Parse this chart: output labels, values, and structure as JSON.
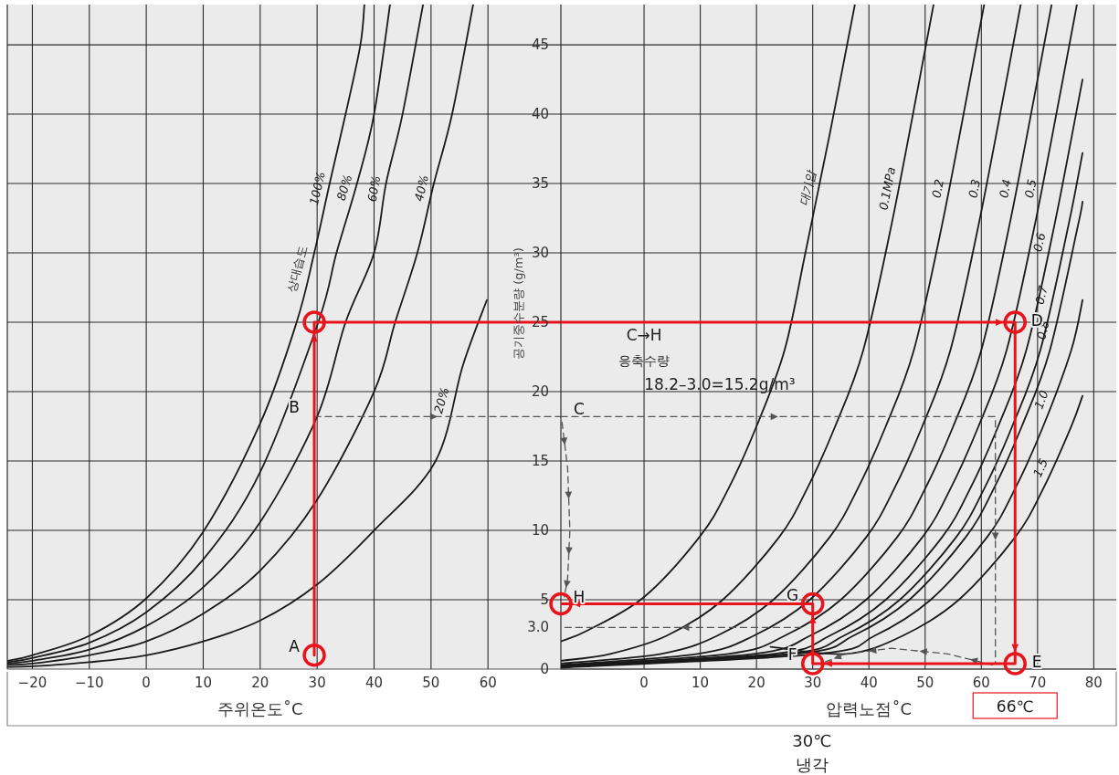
{
  "chart_data": [
    {
      "type": "line",
      "xlabel": "주위온도˚C",
      "xlim": [
        -24.4,
        72.8
      ],
      "xticks": [
        {
          "value": -20,
          "label": "−20"
        },
        {
          "value": -10,
          "label": "−10"
        },
        0,
        10,
        20,
        30,
        40,
        50,
        60
      ],
      "ylim": [
        0,
        47.9
      ],
      "yticks": [
        5,
        10,
        15,
        20,
        25,
        30,
        35,
        40,
        45
      ],
      "tick_labels": "x",
      "grid": true,
      "series": [
        {
          "name": "100%",
          "color": "#1a1a1a",
          "x": [
            -24.4,
            -20,
            -10,
            0,
            10,
            20,
            26.4,
            29.5,
            32.2,
            35,
            37.6,
            38.3
          ],
          "values": [
            0.6,
            1.0,
            2.4,
            5.1,
            9.9,
            17.7,
            25,
            30,
            35,
            40,
            45,
            47.9
          ]
        },
        {
          "name": "80%",
          "color": "#1a1a1a",
          "x": [
            -24.4,
            -20,
            -10,
            0,
            10,
            20,
            30.2,
            33.4,
            37,
            40,
            42.8
          ],
          "values": [
            0.5,
            0.8,
            1.9,
            4.1,
            7.9,
            14.2,
            25,
            30,
            35,
            40,
            47.9
          ]
        },
        {
          "name": "60%",
          "color": "#1a1a1a",
          "x": [
            -24.4,
            -20,
            -10,
            0,
            10,
            20,
            30,
            35,
            40,
            42.1,
            45,
            48.6
          ],
          "values": [
            0.4,
            0.6,
            1.4,
            3.1,
            5.9,
            10.6,
            18.2,
            25,
            30,
            35,
            40,
            47.9
          ]
        },
        {
          "name": "40%",
          "color": "#1a1a1a",
          "x": [
            -24.4,
            -20,
            -10,
            0,
            10,
            20,
            30,
            40,
            43.7,
            47.6,
            50.5,
            53.7,
            57.4
          ],
          "values": [
            0.3,
            0.4,
            1.0,
            2,
            4,
            7.1,
            12.2,
            20,
            25,
            30,
            35,
            40,
            47.9
          ]
        },
        {
          "name": "20%",
          "color": "#1a1a1a",
          "x": [
            -24.4,
            -20,
            -10,
            0,
            10,
            20,
            30,
            40,
            50.8,
            55.6,
            59.8
          ],
          "values": [
            0.15,
            0.2,
            0.5,
            1,
            2,
            3.5,
            6.1,
            10,
            15,
            21.9,
            26.6
          ]
        },
        {
          "type": "line",
          "color": "#555555",
          "line_style": "dashed",
          "x": [
            29.5,
            72.8
          ],
          "values": [
            18.2,
            18.2
          ]
        },
        {
          "type": "line",
          "color": "#e8141c",
          "x": [
            29.5,
            29.5,
            72.8
          ],
          "values": [
            1,
            25,
            25
          ]
        },
        {
          "type": "scatter",
          "color": "#e8141c",
          "marker": "circle",
          "x": [
            29.5,
            29.5
          ],
          "values": [
            1,
            25
          ]
        }
      ],
      "legend_title": "상대습도",
      "annotations": [
        {
          "text": "A",
          "x": 29.5,
          "y": 1
        },
        {
          "text": "B",
          "x": 29.5,
          "y": 18.2
        }
      ]
    },
    {
      "type": "line",
      "xlabel": "압력노점˚C",
      "ylabel": "공기중수분량 (g/m³)",
      "xlim": [
        -14.8,
        84
      ],
      "xticks": [
        0,
        10,
        20,
        30,
        40,
        50,
        60,
        70,
        80
      ],
      "ylim": [
        0,
        47.9
      ],
      "yticks": [
        0,
        {
          "value": 3,
          "label": "3.0"
        },
        5,
        10,
        15,
        20,
        25,
        30,
        35,
        40,
        45
      ],
      "grid": true,
      "series": [
        {
          "name": "대기압",
          "color": "#1a1a1a",
          "x": [
            -14.8,
            -10,
            0,
            10,
            15,
            20,
            25,
            28.7,
            33,
            37.5
          ],
          "values": [
            2.0,
            2.8,
            5.2,
            9.6,
            13,
            17.5,
            23,
            30,
            38.5,
            47.9
          ]
        },
        {
          "name": "0.1MPa",
          "color": "#1a1a1a",
          "x": [
            -14.8,
            -6,
            4,
            14,
            24,
            29,
            34,
            39,
            44,
            49,
            51.5
          ],
          "values": [
            0.6,
            1.1,
            2.4,
            5,
            9.5,
            13,
            17.5,
            23,
            32,
            42.5,
            47.9
          ]
        },
        {
          "name": "0.2",
          "color": "#1a1a1a",
          "x": [
            -14.8,
            3,
            13,
            23,
            33,
            38,
            43,
            48,
            53,
            58,
            60.5
          ],
          "values": [
            0.4,
            1.1,
            2.4,
            5,
            9.5,
            13,
            17.5,
            23,
            32,
            42.5,
            47.9
          ]
        },
        {
          "name": "0.3",
          "color": "#1a1a1a",
          "x": [
            -14.8,
            9.5,
            19.5,
            29.5,
            39.5,
            44.5,
            49.5,
            54.5,
            59.5,
            64.5,
            67
          ],
          "values": [
            0.3,
            1.1,
            2.4,
            5,
            9.5,
            13,
            17.5,
            23,
            32,
            42.5,
            47.9
          ]
        },
        {
          "name": "0.4",
          "color": "#1a1a1a",
          "x": [
            -14.8,
            15,
            25,
            35,
            45,
            50,
            55,
            60,
            65,
            70,
            72.5
          ],
          "values": [
            0.25,
            1.1,
            2.4,
            5,
            9.5,
            13,
            17.5,
            23,
            32,
            42.5,
            47.9
          ]
        },
        {
          "name": "0.5",
          "color": "#1a1a1a",
          "x": [
            -14.8,
            19.5,
            29.5,
            39.5,
            49.5,
            54.5,
            59.5,
            64.5,
            69.5,
            74.5,
            77
          ],
          "values": [
            0.2,
            1.1,
            2.4,
            5,
            9.5,
            13,
            17.5,
            23,
            32,
            42.5,
            47.9
          ]
        },
        {
          "name": "0.6",
          "color": "#1a1a1a",
          "x": [
            -14.8,
            23,
            33,
            43,
            53,
            58,
            63,
            68,
            73,
            78
          ],
          "values": [
            0.2,
            1.1,
            2.4,
            5,
            9.5,
            13,
            17.5,
            23,
            32,
            42.5
          ]
        },
        {
          "name": "0.7",
          "color": "#1a1a1a",
          "x": [
            -14.8,
            25.5,
            35.5,
            45.5,
            55.5,
            60.5,
            65.5,
            70.5,
            75.5,
            78
          ],
          "values": [
            0.15,
            1.1,
            2.4,
            5,
            9.5,
            13,
            17.5,
            23,
            32,
            37.2
          ]
        },
        {
          "name": "0.8",
          "color": "#1a1a1a",
          "x": [
            -14.8,
            27.2,
            37.2,
            47.2,
            57.2,
            62.2,
            67.2,
            72.2,
            77.2,
            78
          ],
          "values": [
            0.15,
            1.1,
            2.4,
            5,
            9.5,
            13,
            17.5,
            23,
            32,
            33.7
          ]
        },
        {
          "name": "1.0",
          "color": "#1a1a1a",
          "x": [
            -14.8,
            31,
            41,
            51,
            61,
            66,
            71,
            76,
            78
          ],
          "values": [
            0.1,
            1.1,
            2.4,
            5,
            9.5,
            13,
            17.5,
            23,
            26.6
          ]
        },
        {
          "name": "1.5",
          "color": "#1a1a1a",
          "x": [
            22.5,
            36,
            46,
            56,
            66,
            71,
            76,
            78
          ],
          "values": [
            1.6,
            1.1,
            2.4,
            5,
            9.5,
            13,
            17.5,
            19.7
          ]
        },
        {
          "type": "line",
          "color": "#555555",
          "line_style": "dashed",
          "x": [
            -14.8,
            62.5,
            62.5
          ],
          "values": [
            18.2,
            18.2,
            0.4
          ]
        },
        {
          "type": "line",
          "color": "#555555",
          "line_style": "dashed",
          "x": [
            -14.6,
            -13.6,
            -13.2,
            -13.6,
            -14.2
          ],
          "values": [
            17.8,
            14.5,
            10,
            6.5,
            5.2
          ]
        },
        {
          "type": "line",
          "color": "#555555",
          "line_style": "dashed",
          "x": [
            28,
            -14.6
          ],
          "values": [
            3,
            3
          ]
        },
        {
          "type": "line",
          "color": "#555555",
          "line_style": "dashed",
          "x": [
            62,
            54,
            44,
            36,
            31.5
          ],
          "values": [
            0.3,
            1.1,
            1.5,
            1.1,
            0.4
          ]
        },
        {
          "type": "line",
          "color": "#e8141c",
          "x": [
            -14.8,
            66,
            66,
            30,
            30,
            -14.8
          ],
          "values": [
            25,
            25,
            0.4,
            0.4,
            4.7,
            4.7
          ]
        },
        {
          "type": "scatter",
          "color": "#e8141c",
          "marker": "circle",
          "x": [
            66,
            66,
            30,
            30,
            -14.8
          ],
          "values": [
            25,
            0.4,
            0.4,
            4.7,
            4.7
          ]
        }
      ],
      "annotations": [
        {
          "text": "C",
          "x": -14.8,
          "y": 18.2
        },
        "C→H",
        "응축수량",
        "18.2–3.0=15.2g/m³",
        {
          "text": "D",
          "x": 66,
          "y": 25
        },
        {
          "text": "E",
          "x": 66,
          "y": 0.4
        },
        {
          "text": "F",
          "x": 30,
          "y": 0.4
        },
        {
          "text": "G",
          "x": 30,
          "y": 4.7
        },
        {
          "text": "H",
          "x": -14.8,
          "y": 4.7
        },
        {
          "text": "66℃",
          "x": 66,
          "y": 0
        },
        "30℃\n냉각"
      ]
    }
  ]
}
